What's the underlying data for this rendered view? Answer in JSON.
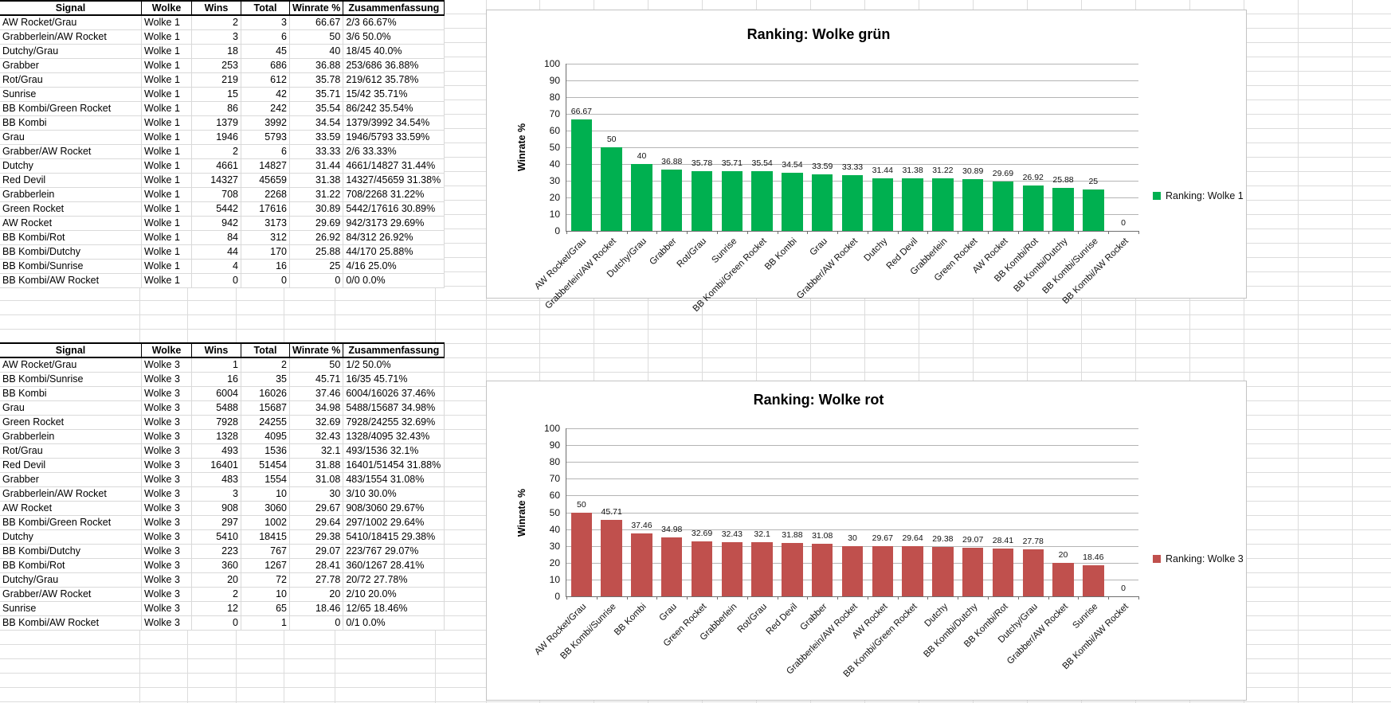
{
  "tables": [
    {
      "name": "Ranking Wolke 1",
      "headers": [
        "Signal",
        "Wolke",
        "Wins",
        "Total",
        "Winrate %",
        "Zusammenfassung"
      ],
      "rows": [
        [
          "AW Rocket/Grau",
          "Wolke 1",
          "2",
          "3",
          "66.67",
          "2/3 66.67%"
        ],
        [
          "Grabberlein/AW Rocket",
          "Wolke 1",
          "3",
          "6",
          "50",
          "3/6 50.0%"
        ],
        [
          "Dutchy/Grau",
          "Wolke 1",
          "18",
          "45",
          "40",
          "18/45 40.0%"
        ],
        [
          "Grabber",
          "Wolke 1",
          "253",
          "686",
          "36.88",
          "253/686 36.88%"
        ],
        [
          "Rot/Grau",
          "Wolke 1",
          "219",
          "612",
          "35.78",
          "219/612 35.78%"
        ],
        [
          "Sunrise",
          "Wolke 1",
          "15",
          "42",
          "35.71",
          "15/42 35.71%"
        ],
        [
          "BB Kombi/Green Rocket",
          "Wolke 1",
          "86",
          "242",
          "35.54",
          "86/242 35.54%"
        ],
        [
          "BB Kombi",
          "Wolke 1",
          "1379",
          "3992",
          "34.54",
          "1379/3992 34.54%"
        ],
        [
          "Grau",
          "Wolke 1",
          "1946",
          "5793",
          "33.59",
          "1946/5793 33.59%"
        ],
        [
          "Grabber/AW Rocket",
          "Wolke 1",
          "2",
          "6",
          "33.33",
          "2/6 33.33%"
        ],
        [
          "Dutchy",
          "Wolke 1",
          "4661",
          "14827",
          "31.44",
          "4661/14827 31.44%"
        ],
        [
          "Red Devil",
          "Wolke 1",
          "14327",
          "45659",
          "31.38",
          "14327/45659 31.38%"
        ],
        [
          "Grabberlein",
          "Wolke 1",
          "708",
          "2268",
          "31.22",
          "708/2268 31.22%"
        ],
        [
          "Green Rocket",
          "Wolke 1",
          "5442",
          "17616",
          "30.89",
          "5442/17616 30.89%"
        ],
        [
          "AW Rocket",
          "Wolke 1",
          "942",
          "3173",
          "29.69",
          "942/3173 29.69%"
        ],
        [
          "BB Kombi/Rot",
          "Wolke 1",
          "84",
          "312",
          "26.92",
          "84/312 26.92%"
        ],
        [
          "BB Kombi/Dutchy",
          "Wolke 1",
          "44",
          "170",
          "25.88",
          "44/170 25.88%"
        ],
        [
          "BB Kombi/Sunrise",
          "Wolke 1",
          "4",
          "16",
          "25",
          "4/16 25.0%"
        ],
        [
          "BB Kombi/AW Rocket",
          "Wolke 1",
          "0",
          "0",
          "0",
          "0/0 0.0%"
        ]
      ]
    },
    {
      "name": "Ranking Wolke 3",
      "headers": [
        "Signal",
        "Wolke",
        "Wins",
        "Total",
        "Winrate %",
        "Zusammenfassung"
      ],
      "rows": [
        [
          "AW Rocket/Grau",
          "Wolke 3",
          "1",
          "2",
          "50",
          "1/2 50.0%"
        ],
        [
          "BB Kombi/Sunrise",
          "Wolke 3",
          "16",
          "35",
          "45.71",
          "16/35 45.71%"
        ],
        [
          "BB Kombi",
          "Wolke 3",
          "6004",
          "16026",
          "37.46",
          "6004/16026 37.46%"
        ],
        [
          "Grau",
          "Wolke 3",
          "5488",
          "15687",
          "34.98",
          "5488/15687 34.98%"
        ],
        [
          "Green Rocket",
          "Wolke 3",
          "7928",
          "24255",
          "32.69",
          "7928/24255 32.69%"
        ],
        [
          "Grabberlein",
          "Wolke 3",
          "1328",
          "4095",
          "32.43",
          "1328/4095 32.43%"
        ],
        [
          "Rot/Grau",
          "Wolke 3",
          "493",
          "1536",
          "32.1",
          "493/1536 32.1%"
        ],
        [
          "Red Devil",
          "Wolke 3",
          "16401",
          "51454",
          "31.88",
          "16401/51454 31.88%"
        ],
        [
          "Grabber",
          "Wolke 3",
          "483",
          "1554",
          "31.08",
          "483/1554 31.08%"
        ],
        [
          "Grabberlein/AW Rocket",
          "Wolke 3",
          "3",
          "10",
          "30",
          "3/10 30.0%"
        ],
        [
          "AW Rocket",
          "Wolke 3",
          "908",
          "3060",
          "29.67",
          "908/3060 29.67%"
        ],
        [
          "BB Kombi/Green Rocket",
          "Wolke 3",
          "297",
          "1002",
          "29.64",
          "297/1002 29.64%"
        ],
        [
          "Dutchy",
          "Wolke 3",
          "5410",
          "18415",
          "29.38",
          "5410/18415 29.38%"
        ],
        [
          "BB Kombi/Dutchy",
          "Wolke 3",
          "223",
          "767",
          "29.07",
          "223/767 29.07%"
        ],
        [
          "BB Kombi/Rot",
          "Wolke 3",
          "360",
          "1267",
          "28.41",
          "360/1267 28.41%"
        ],
        [
          "Dutchy/Grau",
          "Wolke 3",
          "20",
          "72",
          "27.78",
          "20/72 27.78%"
        ],
        [
          "Grabber/AW Rocket",
          "Wolke 3",
          "2",
          "10",
          "20",
          "2/10 20.0%"
        ],
        [
          "Sunrise",
          "Wolke 3",
          "12",
          "65",
          "18.46",
          "12/65 18.46%"
        ],
        [
          "BB Kombi/AW Rocket",
          "Wolke 3",
          "0",
          "1",
          "0",
          "0/1 0.0%"
        ]
      ]
    }
  ],
  "chart_data": [
    {
      "type": "bar",
      "title": "Ranking: Wolke grün",
      "ylabel": "Winrate %",
      "xlabel": "",
      "ylim": [
        0,
        100
      ],
      "ytick_step": 10,
      "grid": true,
      "legend": {
        "label": "Ranking: Wolke 1",
        "position": "right"
      },
      "bar_color": "#00B050",
      "categories": [
        "AW Rocket/Grau",
        "Grabberlein/AW Rocket",
        "Dutchy/Grau",
        "Grabber",
        "Rot/Grau",
        "Sunrise",
        "BB Kombi/Green Rocket",
        "BB Kombi",
        "Grau",
        "Grabber/AW Rocket",
        "Dutchy",
        "Red Devil",
        "Grabberlein",
        "Green Rocket",
        "AW Rocket",
        "BB Kombi/Rot",
        "BB Kombi/Dutchy",
        "BB Kombi/Sunrise",
        "BB Kombi/AW Rocket"
      ],
      "values": [
        66.67,
        50,
        40,
        36.88,
        35.78,
        35.71,
        35.54,
        34.54,
        33.59,
        33.33,
        31.44,
        31.38,
        31.22,
        30.89,
        29.69,
        26.92,
        25.88,
        25,
        0
      ],
      "value_labels": [
        "66.67",
        "50",
        "40",
        "36.88",
        "35.78",
        "35.71",
        "35.54",
        "34.54",
        "33.59",
        "33.33",
        "31.44",
        "31.38",
        "31.22",
        "30.89",
        "29.69",
        "26.92",
        "25.88",
        "25",
        "0"
      ]
    },
    {
      "type": "bar",
      "title": "Ranking: Wolke rot",
      "ylabel": "Winrate %",
      "xlabel": "",
      "ylim": [
        0,
        100
      ],
      "ytick_step": 10,
      "grid": true,
      "legend": {
        "label": "Ranking: Wolke 3",
        "position": "right"
      },
      "bar_color": "#C0504D",
      "categories": [
        "AW Rocket/Grau",
        "BB Kombi/Sunrise",
        "BB Kombi",
        "Grau",
        "Green Rocket",
        "Grabberlein",
        "Rot/Grau",
        "Red Devil",
        "Grabber",
        "Grabberlein/AW Rocket",
        "AW Rocket",
        "BB Kombi/Green Rocket",
        "Dutchy",
        "BB Kombi/Dutchy",
        "BB Kombi/Rot",
        "Dutchy/Grau",
        "Grabber/AW Rocket",
        "Sunrise",
        "BB Kombi/AW Rocket"
      ],
      "values": [
        50,
        45.71,
        37.46,
        34.98,
        32.69,
        32.43,
        32.1,
        31.88,
        31.08,
        30,
        29.67,
        29.64,
        29.38,
        29.07,
        28.41,
        27.78,
        20,
        18.46,
        0
      ],
      "value_labels": [
        "50",
        "45.71",
        "37.46",
        "34.98",
        "32.69",
        "32.43",
        "32.1",
        "31.88",
        "31.08",
        "30",
        "29.67",
        "29.64",
        "29.38",
        "29.07",
        "28.41",
        "27.78",
        "20",
        "18.46",
        "0"
      ]
    }
  ],
  "colors": {
    "bar_green": "#00B050",
    "bar_red": "#C0504D",
    "gridline": "#b4b4b4",
    "sheet_gridline": "#dcdcdc"
  }
}
